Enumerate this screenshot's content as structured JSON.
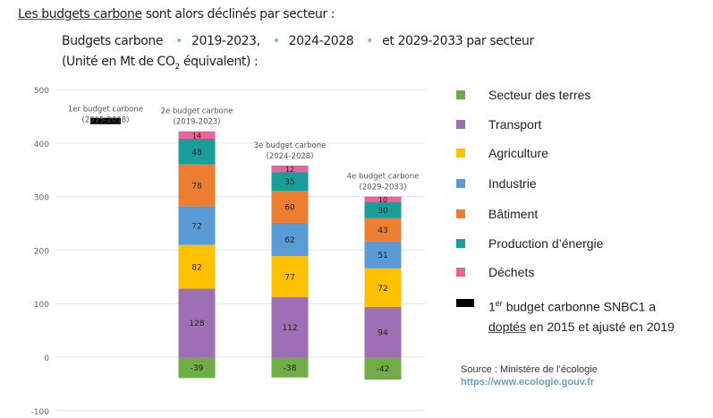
{
  "intro": {
    "link": "Les budgets carbone",
    "rest": " sont alors déclinés par secteur :"
  },
  "subtitle": {
    "p1": "Budgets carbone",
    "p2": "2019-2023,",
    "p3": "2024-2028",
    "p4": "et 2029-2033 par secteur",
    "line2a": "(Unité en Mt de CO",
    "line2sub": "2",
    "line2b": " équivalent) :"
  },
  "chart_data": {
    "type": "bar",
    "stacked": true,
    "ylim": [
      -100,
      500
    ],
    "yticks": [
      -100,
      0,
      100,
      200,
      300,
      400,
      500
    ],
    "grid": true,
    "legend_position": "right",
    "categories": [
      [
        "1er budget carbone",
        "(2015-2018)"
      ],
      [
        "2e budget carbone",
        "(2019-2023)"
      ],
      [
        "3e budget carbone",
        "(2024-2028)"
      ],
      [
        "4e budget carbone",
        "(2029-2033)"
      ]
    ],
    "series": [
      {
        "name": "Secteur des terres",
        "color": "#70ad47",
        "values": [
          null,
          -39,
          -38,
          -42
        ]
      },
      {
        "name": "Transport",
        "color": "#9e6fb5",
        "values": [
          null,
          128,
          112,
          94
        ]
      },
      {
        "name": "Agriculture",
        "color": "#ffc000",
        "values": [
          null,
          82,
          77,
          72
        ]
      },
      {
        "name": "Industrie",
        "color": "#5b9bd5",
        "values": [
          null,
          72,
          62,
          51
        ]
      },
      {
        "name": "Bâtiment",
        "color": "#ed7d31",
        "values": [
          null,
          78,
          60,
          43
        ]
      },
      {
        "name": "Production d’énergie",
        "color": "#1a9e9a",
        "values": [
          null,
          48,
          35,
          30
        ]
      },
      {
        "name": "Déchets",
        "color": "#e8649b",
        "values": [
          null,
          14,
          12,
          10
        ]
      }
    ],
    "first_budget_marker": {
      "value": 442,
      "color": "#000000"
    }
  },
  "legend": {
    "items": [
      {
        "label": "Secteur des terres",
        "color": "#70ad47"
      },
      {
        "label": "Transport",
        "color": "#9e6fb5"
      },
      {
        "label": "Agriculture",
        "color": "#ffc000"
      },
      {
        "label": "Industrie",
        "color": "#5b9bd5"
      },
      {
        "label": "Bâtiment",
        "color": "#ed7d31"
      },
      {
        "label": "Production d’énergie",
        "color": "#1a9e9a"
      },
      {
        "label": "Déchets",
        "color": "#e8649b"
      }
    ],
    "snbc": {
      "sup_pre": "1",
      "sup": "er",
      "l1": " budget carbonne SNBC1 a",
      "l2link": "doptés",
      "l2": " en 2015 et ajusté en 2019",
      "color": "#000000"
    }
  },
  "source": {
    "text": "Source : Ministère de l’écologie",
    "url": "https://www.ecologie.gouv.fr"
  }
}
